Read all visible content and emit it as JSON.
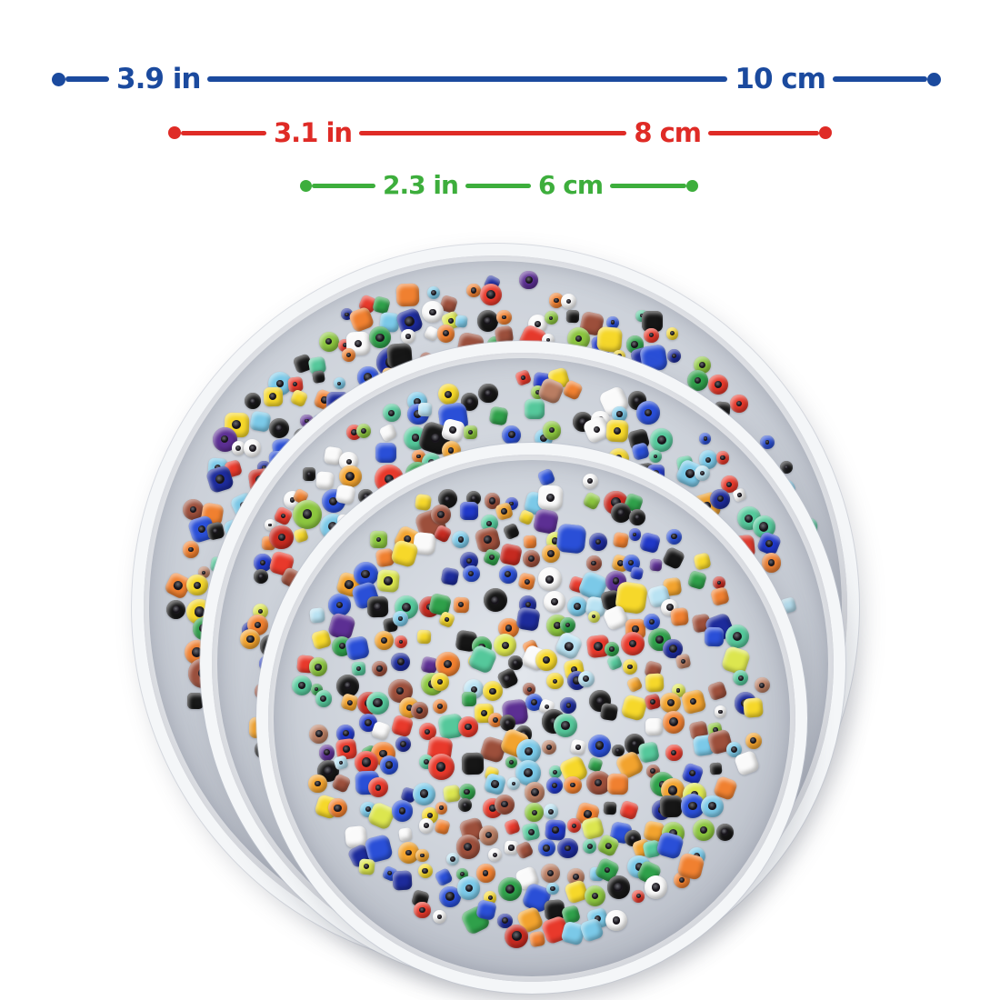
{
  "page": {
    "background": "#ffffff"
  },
  "measurements": [
    {
      "size": "large",
      "inch": "3.9 in",
      "cm": "10 cm",
      "color": "#1b4a9e"
    },
    {
      "size": "medium",
      "inch": "3.1 in",
      "cm": "8 cm",
      "color": "#df2b26"
    },
    {
      "size": "small",
      "inch": "2.3 in",
      "cm": "6 cm",
      "color": "#3dae3c"
    }
  ],
  "trays": [
    {
      "name": "large bead tray",
      "diameter": "10 cm (3.9 in)"
    },
    {
      "name": "medium bead tray",
      "diameter": "8 cm (3.1 in)"
    },
    {
      "name": "small bead tray",
      "diameter": "6 cm (2.3 in)"
    }
  ],
  "tray_style": {
    "rim_color": "#f4f6f8",
    "interior_center": "#e2e6ec",
    "interior_edge": "#a0a5b1"
  },
  "bead_palette": [
    {
      "name": "red",
      "hex": "#e8392b"
    },
    {
      "name": "dark-red",
      "hex": "#c62a20"
    },
    {
      "name": "orange",
      "hex": "#f08030"
    },
    {
      "name": "amber",
      "hex": "#f2a32e"
    },
    {
      "name": "yellow",
      "hex": "#f6d82a"
    },
    {
      "name": "lime-yellow",
      "hex": "#dce64f"
    },
    {
      "name": "lime-green",
      "hex": "#8cc63f"
    },
    {
      "name": "green",
      "hex": "#2fa04a"
    },
    {
      "name": "mint",
      "hex": "#55c89b"
    },
    {
      "name": "sky-blue",
      "hex": "#7bc9e8"
    },
    {
      "name": "pale-blue",
      "hex": "#b9e2f2"
    },
    {
      "name": "royal-blue",
      "hex": "#2a4fd7"
    },
    {
      "name": "navy",
      "hex": "#1d2b9b"
    },
    {
      "name": "cobalt",
      "hex": "#2038c8"
    },
    {
      "name": "black",
      "hex": "#161616"
    },
    {
      "name": "white",
      "hex": "#fafafa"
    },
    {
      "name": "brown",
      "hex": "#9c4f3b"
    },
    {
      "name": "tan",
      "hex": "#b97d62"
    },
    {
      "name": "purple",
      "hex": "#5c2f93"
    }
  ]
}
